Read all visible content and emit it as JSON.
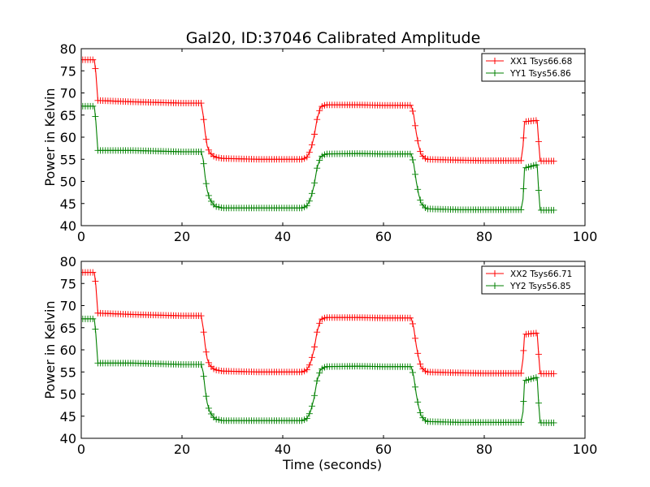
{
  "figure": {
    "title": "Gal20, ID:37046 Calibrated Amplitude",
    "xlabel": "Time (seconds)"
  },
  "chart_data": [
    {
      "type": "line",
      "title": "Gal20, ID:37046 Calibrated Amplitude",
      "xlabel": "",
      "ylabel": "Power in Kelvin",
      "xlim": [
        0,
        100
      ],
      "ylim": [
        40,
        80
      ],
      "xticks": [
        0,
        20,
        40,
        60,
        80,
        100
      ],
      "yticks": [
        40,
        45,
        50,
        55,
        60,
        65,
        70,
        75,
        80
      ],
      "grid": false,
      "legend_position": "top-right",
      "series": [
        {
          "name": "XX1 Tsys66.68",
          "color": "#ff0000",
          "marker": "+",
          "segments": [
            [
              [
                0.3,
                77.5
              ],
              [
                2.6,
                77.5
              ],
              [
                2.9,
                74.5
              ],
              [
                3.3,
                68.3
              ],
              [
                10,
                68.0
              ],
              [
                20,
                67.7
              ],
              [
                23.8,
                67.7
              ],
              [
                24.2,
                65.0
              ],
              [
                24.6,
                61.0
              ],
              [
                25.0,
                58.0
              ],
              [
                25.5,
                56.5
              ],
              [
                26.5,
                55.5
              ],
              [
                28,
                55.2
              ],
              [
                35,
                55.0
              ],
              [
                44,
                55.0
              ],
              [
                44.8,
                55.5
              ],
              [
                45.5,
                57.0
              ],
              [
                46.2,
                60.0
              ],
              [
                46.8,
                64.0
              ],
              [
                47.5,
                66.8
              ],
              [
                48.5,
                67.3
              ],
              [
                55,
                67.3
              ],
              [
                60,
                67.2
              ],
              [
                65.5,
                67.2
              ],
              [
                66,
                65.0
              ],
              [
                66.5,
                61.0
              ],
              [
                67,
                58.0
              ],
              [
                67.5,
                56.0
              ],
              [
                68.5,
                55.0
              ],
              [
                75,
                54.8
              ],
              [
                80,
                54.7
              ],
              [
                87.3,
                54.7
              ],
              [
                87.7,
                58.0
              ],
              [
                88.0,
                63.5
              ],
              [
                90.5,
                63.8
              ],
              [
                90.8,
                59.0
              ],
              [
                91.1,
                54.6
              ],
              [
                93.8,
                54.6
              ]
            ]
          ]
        },
        {
          "name": "YY1 Tsys56.86",
          "color": "#008000",
          "marker": "+",
          "segments": [
            [
              [
                0.3,
                67.0
              ],
              [
                2.6,
                67.0
              ],
              [
                2.9,
                63.5
              ],
              [
                3.3,
                57.0
              ],
              [
                10,
                57.0
              ],
              [
                20,
                56.7
              ],
              [
                23.8,
                56.7
              ],
              [
                24.2,
                55.0
              ],
              [
                24.6,
                51.0
              ],
              [
                25.0,
                48.0
              ],
              [
                25.5,
                46.0
              ],
              [
                26.5,
                44.4
              ],
              [
                28,
                44.0
              ],
              [
                35,
                44.0
              ],
              [
                44,
                44.0
              ],
              [
                44.8,
                44.5
              ],
              [
                45.5,
                46.0
              ],
              [
                46.2,
                49.0
              ],
              [
                46.8,
                53.0
              ],
              [
                47.5,
                55.5
              ],
              [
                48.5,
                56.2
              ],
              [
                55,
                56.3
              ],
              [
                60,
                56.2
              ],
              [
                65.5,
                56.2
              ],
              [
                66,
                54.0
              ],
              [
                66.5,
                50.0
              ],
              [
                67,
                47.0
              ],
              [
                67.5,
                45.0
              ],
              [
                68.5,
                43.8
              ],
              [
                75,
                43.6
              ],
              [
                80,
                43.6
              ],
              [
                87.3,
                43.6
              ],
              [
                87.7,
                46.0
              ],
              [
                88.0,
                53.0
              ],
              [
                90.5,
                53.8
              ],
              [
                90.8,
                48.0
              ],
              [
                91.1,
                43.5
              ],
              [
                93.8,
                43.5
              ]
            ]
          ]
        }
      ]
    },
    {
      "type": "line",
      "title": "",
      "xlabel": "Time (seconds)",
      "ylabel": "Power in Kelvin",
      "xlim": [
        0,
        100
      ],
      "ylim": [
        40,
        80
      ],
      "xticks": [
        0,
        20,
        40,
        60,
        80,
        100
      ],
      "yticks": [
        40,
        45,
        50,
        55,
        60,
        65,
        70,
        75,
        80
      ],
      "grid": false,
      "legend_position": "top-right",
      "series": [
        {
          "name": "XX2 Tsys66.71",
          "color": "#ff0000",
          "marker": "+",
          "segments": [
            [
              [
                0.3,
                77.5
              ],
              [
                2.6,
                77.5
              ],
              [
                2.9,
                74.5
              ],
              [
                3.3,
                68.3
              ],
              [
                10,
                68.0
              ],
              [
                20,
                67.7
              ],
              [
                23.8,
                67.7
              ],
              [
                24.2,
                65.0
              ],
              [
                24.6,
                61.0
              ],
              [
                25.0,
                58.0
              ],
              [
                25.5,
                56.5
              ],
              [
                26.5,
                55.5
              ],
              [
                28,
                55.2
              ],
              [
                35,
                55.0
              ],
              [
                44,
                55.0
              ],
              [
                44.8,
                55.5
              ],
              [
                45.5,
                57.0
              ],
              [
                46.2,
                60.0
              ],
              [
                46.8,
                64.0
              ],
              [
                47.5,
                66.8
              ],
              [
                48.5,
                67.3
              ],
              [
                55,
                67.3
              ],
              [
                60,
                67.2
              ],
              [
                65.5,
                67.2
              ],
              [
                66,
                65.0
              ],
              [
                66.5,
                61.0
              ],
              [
                67,
                58.0
              ],
              [
                67.5,
                56.0
              ],
              [
                68.5,
                55.0
              ],
              [
                75,
                54.8
              ],
              [
                80,
                54.7
              ],
              [
                87.3,
                54.7
              ],
              [
                87.7,
                58.0
              ],
              [
                88.0,
                63.5
              ],
              [
                90.5,
                63.8
              ],
              [
                90.8,
                59.0
              ],
              [
                91.1,
                54.6
              ],
              [
                93.8,
                54.6
              ]
            ]
          ]
        },
        {
          "name": "YY2 Tsys56.85",
          "color": "#008000",
          "marker": "+",
          "segments": [
            [
              [
                0.3,
                67.0
              ],
              [
                2.6,
                67.0
              ],
              [
                2.9,
                63.5
              ],
              [
                3.3,
                57.0
              ],
              [
                10,
                57.0
              ],
              [
                20,
                56.7
              ],
              [
                23.8,
                56.7
              ],
              [
                24.2,
                55.0
              ],
              [
                24.6,
                51.0
              ],
              [
                25.0,
                48.0
              ],
              [
                25.5,
                46.0
              ],
              [
                26.5,
                44.4
              ],
              [
                28,
                44.0
              ],
              [
                35,
                44.0
              ],
              [
                44,
                44.0
              ],
              [
                44.8,
                44.5
              ],
              [
                45.5,
                46.0
              ],
              [
                46.2,
                49.0
              ],
              [
                46.8,
                53.0
              ],
              [
                47.5,
                55.5
              ],
              [
                48.5,
                56.2
              ],
              [
                55,
                56.3
              ],
              [
                60,
                56.2
              ],
              [
                65.5,
                56.2
              ],
              [
                66,
                54.0
              ],
              [
                66.5,
                50.0
              ],
              [
                67,
                47.0
              ],
              [
                67.5,
                45.0
              ],
              [
                68.5,
                43.8
              ],
              [
                75,
                43.6
              ],
              [
                80,
                43.6
              ],
              [
                87.3,
                43.6
              ],
              [
                87.7,
                46.0
              ],
              [
                88.0,
                53.0
              ],
              [
                90.5,
                53.8
              ],
              [
                90.8,
                48.0
              ],
              [
                91.1,
                43.5
              ],
              [
                93.8,
                43.5
              ]
            ]
          ]
        }
      ]
    }
  ]
}
